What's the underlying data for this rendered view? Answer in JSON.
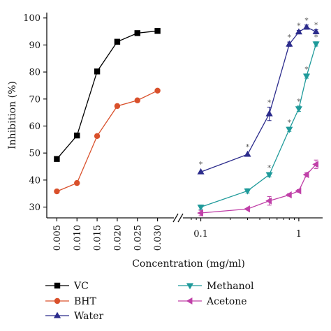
{
  "chart_data": {
    "type": "line",
    "ylabel": "Inhibition (%)",
    "xlabel": "Concentration (mg/ml)",
    "ylim": [
      26,
      102
    ],
    "yticks": [
      30,
      40,
      50,
      60,
      70,
      80,
      90,
      100
    ],
    "grid": false,
    "legend_position": "bottom",
    "panels": [
      {
        "scale": "linear",
        "xlim": [
          0.0025,
          0.0325
        ],
        "xticks": [
          0.005,
          0.01,
          0.015,
          0.02,
          0.025,
          0.03
        ],
        "xtick_labels": [
          "0.005",
          "0.010",
          "0.015",
          "0.020",
          "0.025",
          "0.030"
        ],
        "series": [
          {
            "name": "VC",
            "marker": "square",
            "color": "#000000",
            "x": [
              0.005,
              0.01,
              0.015,
              0.02,
              0.025,
              0.03
            ],
            "y": [
              47.8,
              56.5,
              80.2,
              91.2,
              94.4,
              95.2
            ]
          },
          {
            "name": "BHT",
            "marker": "circle",
            "color": "#d9502b",
            "x": [
              0.005,
              0.01,
              0.015,
              0.02,
              0.025,
              0.03
            ],
            "y": [
              35.8,
              38.9,
              56.3,
              67.4,
              69.5,
              73.1
            ]
          }
        ]
      },
      {
        "scale": "log",
        "xlim": [
          0.075,
          1.75
        ],
        "xticks": [
          0.1,
          1
        ],
        "xtick_labels": [
          "0.1",
          "1"
        ],
        "series": [
          {
            "name": "Water",
            "marker": "triangle-up",
            "color": "#2c2c8c",
            "x": [
              0.1,
              0.3,
              0.5,
              0.8,
              1.0,
              1.2,
              1.5
            ],
            "y": [
              43.0,
              49.5,
              64.5,
              90.3,
              94.8,
              96.6,
              94.9
            ],
            "err": [
              0,
              0,
              2.5,
              0.8,
              0.6,
              0.8,
              0.8
            ],
            "marked": [
              true,
              true,
              true,
              true,
              true,
              true,
              true
            ]
          },
          {
            "name": "Methanol",
            "marker": "triangle-down",
            "color": "#1e9a9a",
            "x": [
              0.1,
              0.3,
              0.5,
              0.8,
              1.0,
              1.2,
              1.5
            ],
            "y": [
              30.0,
              36.0,
              42.0,
              58.8,
              66.4,
              78.5,
              90.4
            ],
            "err": [
              0.8,
              0.8,
              0.8,
              0.8,
              1.0,
              0.8,
              0.8
            ],
            "marked": [
              false,
              false,
              true,
              true,
              true,
              true,
              true
            ]
          },
          {
            "name": "Acetone",
            "marker": "triangle-left",
            "color": "#c040a8",
            "x": [
              0.1,
              0.3,
              0.5,
              0.8,
              1.0,
              1.2,
              1.5
            ],
            "y": [
              27.8,
              29.3,
              32.3,
              34.5,
              36.0,
              42.0,
              45.8
            ],
            "err": [
              1.0,
              0,
              1.6,
              0.5,
              0.5,
              0.8,
              1.6
            ],
            "marked": [
              false,
              false,
              false,
              false,
              false,
              false,
              false
            ]
          }
        ]
      }
    ],
    "annotation_symbol": "*",
    "legend": [
      "VC",
      "BHT",
      "Water",
      "Methanol",
      "Acetone"
    ]
  }
}
